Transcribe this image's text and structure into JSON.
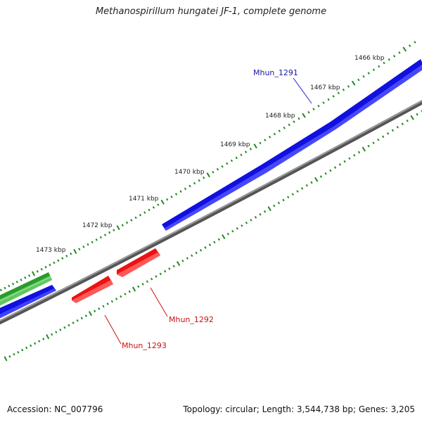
{
  "title": "Methanospirillum hungatei JF-1, complete genome",
  "footer": {
    "accession": "Accession: NC_007796",
    "topology": "Topology: circular; Length: 3,544,738 bp; Genes: 3,205"
  },
  "ticks": [
    {
      "label": "1466 kbp"
    },
    {
      "label": "1467 kbp"
    },
    {
      "label": "1468 kbp"
    },
    {
      "label": "1469 kbp"
    },
    {
      "label": "1470 kbp"
    },
    {
      "label": "1471 kbp"
    },
    {
      "label": "1472 kbp"
    },
    {
      "label": "1473 kbp"
    }
  ],
  "genes": [
    {
      "name": "Mhun_1291",
      "color": "#1a1aa8"
    },
    {
      "name": "Mhun_1292",
      "color": "#cc1111"
    },
    {
      "name": "Mhun_1293",
      "color": "#cc1111"
    }
  ],
  "colors": {
    "forward_feature": "#1010e0",
    "reverse_feature": "#ee1111",
    "other_feature": "#33aa33",
    "backbone": "#808080",
    "ruler_ticks": "#228822"
  }
}
